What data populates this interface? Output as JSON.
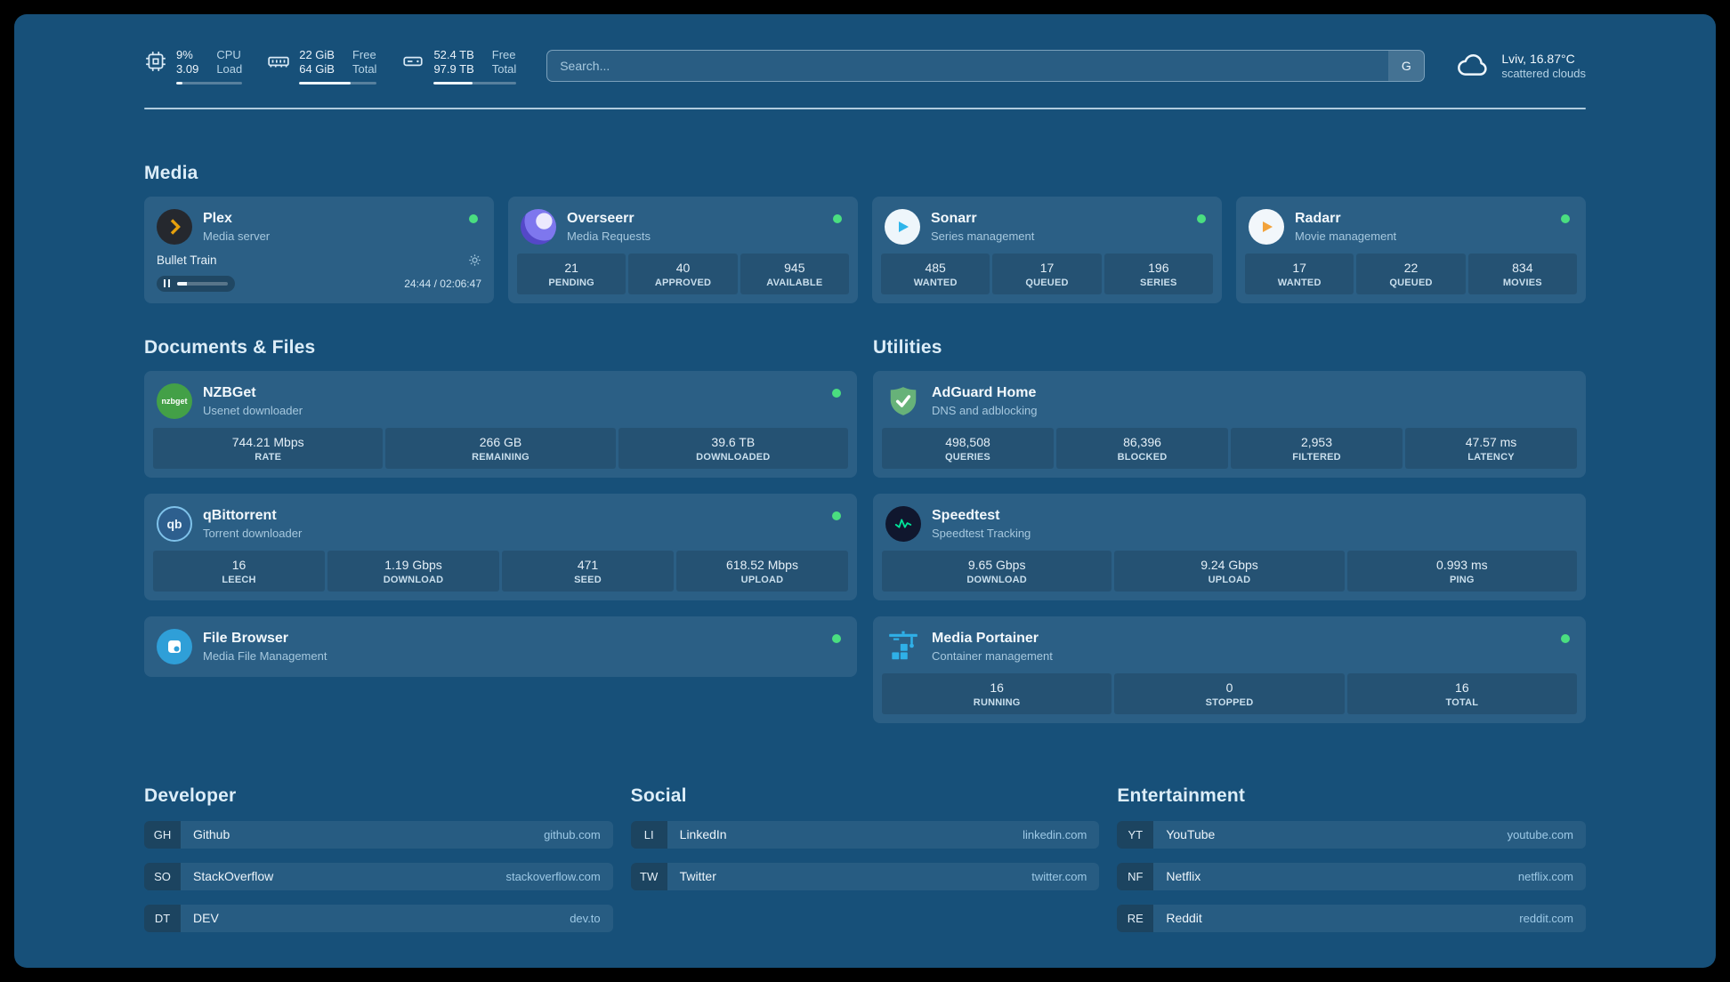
{
  "colors": {
    "background": "#175079",
    "card": "#2a6189",
    "stat_box": "#1d5276",
    "muted_text": "#a6c8de",
    "status_green": "#4ade80",
    "plex_orange": "#e5a00d",
    "overseerr_purple": "#5448c8",
    "sonarr_blue": "#2fb5ea",
    "radarr_gold": "#f2a33c",
    "nzbget_green": "#43a047",
    "adguard_green": "#67b279",
    "speedtest_green": "#00e599",
    "filebrowser_blue": "#2f9fd8",
    "portainer_blue": "#2fb0e8"
  },
  "topbar": {
    "resources": [
      {
        "rows": [
          {
            "value": "9%",
            "label": "CPU"
          },
          {
            "value": "3.09",
            "label": "Load"
          }
        ],
        "progress": 9
      },
      {
        "rows": [
          {
            "value": "22 GiB",
            "label": "Free"
          },
          {
            "value": "64 GiB",
            "label": "Total"
          }
        ],
        "progress": 66
      },
      {
        "rows": [
          {
            "value": "52.4 TB",
            "label": "Free"
          },
          {
            "value": "97.9 TB",
            "label": "Total"
          }
        ],
        "progress": 47
      }
    ],
    "search": {
      "placeholder": "Search...",
      "provider_label": "G"
    },
    "weather": {
      "location": "Lviv, 16.87°C",
      "condition": "scattered clouds"
    }
  },
  "media": {
    "title": "Media",
    "plex": {
      "name": "Plex",
      "desc": "Media server",
      "now_playing": "Bullet Train",
      "time": "24:44 / 02:06:47",
      "progress_pct": 20
    },
    "cards": [
      {
        "name": "Overseerr",
        "desc": "Media Requests",
        "stats": [
          {
            "value": "21",
            "label": "PENDING"
          },
          {
            "value": "40",
            "label": "APPROVED"
          },
          {
            "value": "945",
            "label": "AVAILABLE"
          }
        ]
      },
      {
        "name": "Sonarr",
        "desc": "Series management",
        "stats": [
          {
            "value": "485",
            "label": "WANTED"
          },
          {
            "value": "17",
            "label": "QUEUED"
          },
          {
            "value": "196",
            "label": "SERIES"
          }
        ]
      },
      {
        "name": "Radarr",
        "desc": "Movie management",
        "stats": [
          {
            "value": "17",
            "label": "WANTED"
          },
          {
            "value": "22",
            "label": "QUEUED"
          },
          {
            "value": "834",
            "label": "MOVIES"
          }
        ]
      }
    ]
  },
  "documents": {
    "title": "Documents & Files",
    "cards": [
      {
        "name": "NZBGet",
        "desc": "Usenet downloader",
        "icon_text": "nzbget",
        "stats": [
          {
            "value": "744.21 Mbps",
            "label": "RATE"
          },
          {
            "value": "266 GB",
            "label": "REMAINING"
          },
          {
            "value": "39.6 TB",
            "label": "DOWNLOADED"
          }
        ]
      },
      {
        "name": "qBittorrent",
        "desc": "Torrent downloader",
        "icon_text": "qb",
        "stats": [
          {
            "value": "16",
            "label": "LEECH"
          },
          {
            "value": "1.19 Gbps",
            "label": "DOWNLOAD"
          },
          {
            "value": "471",
            "label": "SEED"
          },
          {
            "value": "618.52 Mbps",
            "label": "UPLOAD"
          }
        ]
      },
      {
        "name": "File Browser",
        "desc": "Media File Management",
        "stats": []
      }
    ]
  },
  "utilities": {
    "title": "Utilities",
    "cards": [
      {
        "name": "AdGuard Home",
        "desc": "DNS and adblocking",
        "stats": [
          {
            "value": "498,508",
            "label": "QUERIES"
          },
          {
            "value": "86,396",
            "label": "BLOCKED"
          },
          {
            "value": "2,953",
            "label": "FILTERED"
          },
          {
            "value": "47.57 ms",
            "label": "LATENCY"
          }
        ]
      },
      {
        "name": "Speedtest",
        "desc": "Speedtest Tracking",
        "stats": [
          {
            "value": "9.65 Gbps",
            "label": "DOWNLOAD"
          },
          {
            "value": "9.24 Gbps",
            "label": "UPLOAD"
          },
          {
            "value": "0.993 ms",
            "label": "PING"
          }
        ]
      },
      {
        "name": "Media Portainer",
        "desc": "Container management",
        "stats": [
          {
            "value": "16",
            "label": "RUNNING"
          },
          {
            "value": "0",
            "label": "STOPPED"
          },
          {
            "value": "16",
            "label": "TOTAL"
          }
        ]
      }
    ]
  },
  "bookmarks": [
    {
      "title": "Developer",
      "items": [
        {
          "abbr": "GH",
          "name": "Github",
          "url": "github.com"
        },
        {
          "abbr": "SO",
          "name": "StackOverflow",
          "url": "stackoverflow.com"
        },
        {
          "abbr": "DT",
          "name": "DEV",
          "url": "dev.to"
        }
      ]
    },
    {
      "title": "Social",
      "items": [
        {
          "abbr": "LI",
          "name": "LinkedIn",
          "url": "linkedin.com"
        },
        {
          "abbr": "TW",
          "name": "Twitter",
          "url": "twitter.com"
        }
      ]
    },
    {
      "title": "Entertainment",
      "items": [
        {
          "abbr": "YT",
          "name": "YouTube",
          "url": "youtube.com"
        },
        {
          "abbr": "NF",
          "name": "Netflix",
          "url": "netflix.com"
        },
        {
          "abbr": "RE",
          "name": "Reddit",
          "url": "reddit.com"
        }
      ]
    }
  ]
}
